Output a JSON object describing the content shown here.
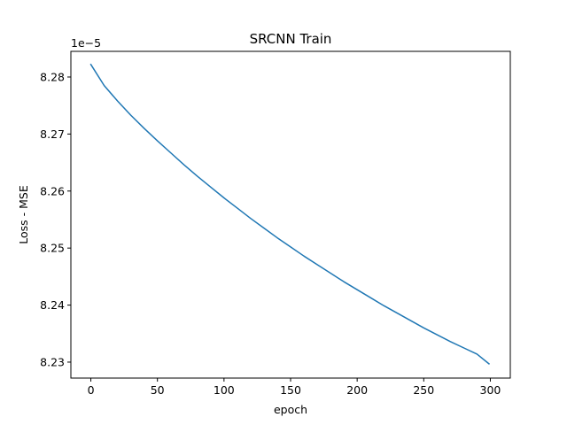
{
  "chart_data": {
    "type": "line",
    "title": "SRCNN Train",
    "xlabel": "epoch",
    "ylabel": "Loss - MSE",
    "y_offset_label": "1e−5",
    "xlim": [
      -15,
      315
    ],
    "ylim": [
      8.2272,
      8.2845
    ],
    "x_ticks": [
      0,
      50,
      100,
      150,
      200,
      250,
      300
    ],
    "x_tick_labels": [
      "0",
      "50",
      "100",
      "150",
      "200",
      "250",
      "300"
    ],
    "y_ticks": [
      8.23,
      8.24,
      8.25,
      8.26,
      8.27,
      8.28
    ],
    "y_tick_labels": [
      "8.23",
      "8.24",
      "8.25",
      "8.26",
      "8.27",
      "8.28"
    ],
    "grid": false,
    "series": [
      {
        "color": "#1f77b4",
        "x": [
          0,
          10,
          20,
          30,
          40,
          50,
          60,
          70,
          80,
          90,
          100,
          110,
          120,
          130,
          140,
          150,
          160,
          170,
          180,
          190,
          200,
          210,
          220,
          230,
          240,
          250,
          260,
          270,
          280,
          290,
          299
        ],
        "y": [
          8.2822,
          8.2785,
          8.2758,
          8.2733,
          8.271,
          8.2688,
          8.2667,
          8.2646,
          8.2626,
          8.2607,
          8.2588,
          8.257,
          8.2552,
          8.2535,
          8.2518,
          8.2502,
          8.2486,
          8.2471,
          8.2456,
          8.2441,
          8.2427,
          8.2413,
          8.2399,
          8.2386,
          8.2373,
          8.236,
          8.2348,
          8.2336,
          8.2325,
          8.2314,
          8.2297
        ]
      }
    ]
  }
}
